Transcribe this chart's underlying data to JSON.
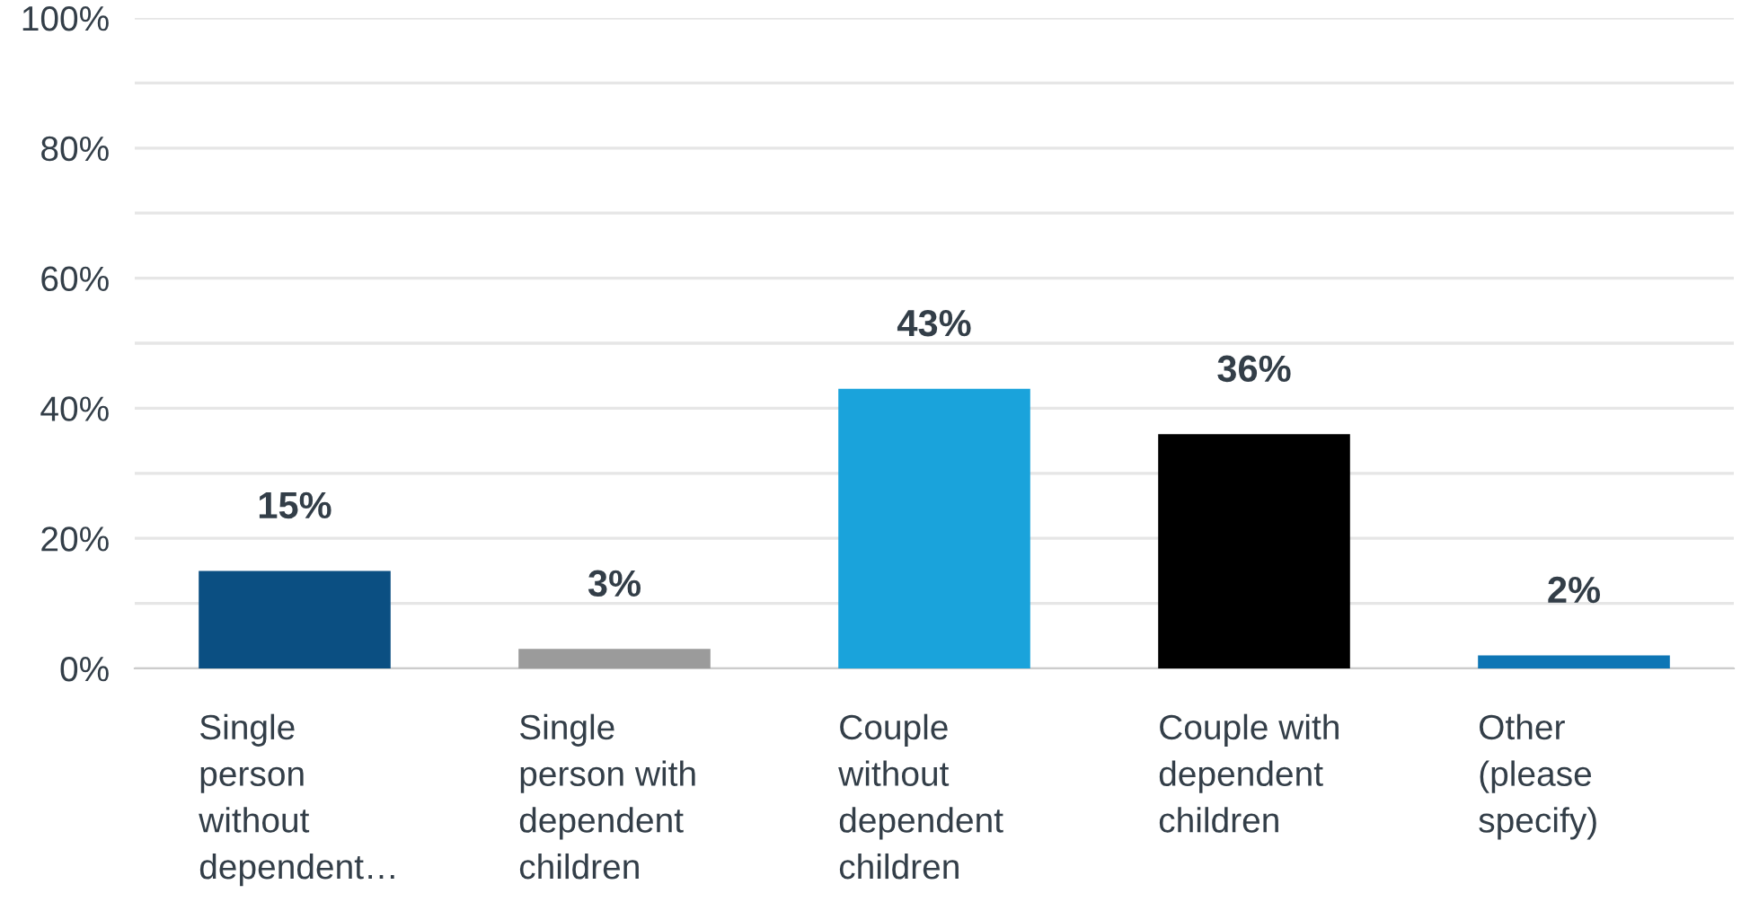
{
  "chart_data": {
    "type": "bar",
    "categories": [
      "Single\nperson\nwithout\ndependent…",
      "Single\nperson with\ndependent\nchildren",
      "Couple\nwithout\ndependent\nchildren",
      "Couple with\ndependent\nchildren",
      "Other\n(please\nspecify)"
    ],
    "values": [
      15,
      3,
      43,
      36,
      2
    ],
    "colors": [
      "#0b4f82",
      "#9b9b9b",
      "#1aa3db",
      "#000000",
      "#0e76b5"
    ],
    "value_labels": [
      "15%",
      "3%",
      "43%",
      "36%",
      "2%"
    ],
    "ylim": [
      0,
      100
    ],
    "yticks": [
      {
        "value": 0,
        "label": "0%"
      },
      {
        "value": 10,
        "label": null
      },
      {
        "value": 20,
        "label": "20%"
      },
      {
        "value": 30,
        "label": null
      },
      {
        "value": 40,
        "label": "40%"
      },
      {
        "value": 50,
        "label": null
      },
      {
        "value": 60,
        "label": "60%"
      },
      {
        "value": 70,
        "label": null
      },
      {
        "value": 80,
        "label": "80%"
      },
      {
        "value": 90,
        "label": null
      },
      {
        "value": 100,
        "label": "100%"
      }
    ],
    "grid": "y"
  }
}
